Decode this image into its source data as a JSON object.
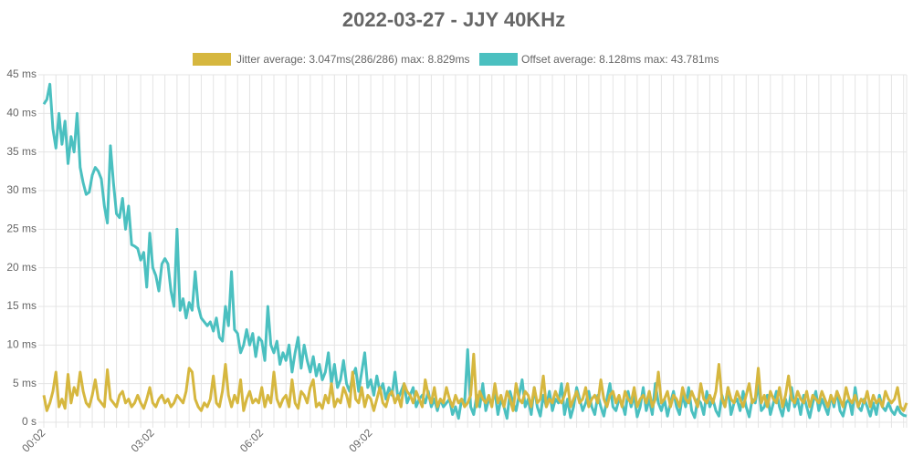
{
  "chart_data": {
    "type": "line",
    "title": "2022-03-27 - JJY 40KHz",
    "categories": [
      "00:02",
      null,
      null,
      null,
      null,
      null,
      null,
      null,
      null,
      null,
      null,
      null,
      null,
      null,
      null,
      null,
      null,
      null,
      null,
      null,
      null,
      null,
      null,
      null,
      null,
      null,
      null,
      null,
      null,
      null,
      null,
      null,
      null,
      null,
      null,
      null,
      "03:02",
      null,
      null,
      null,
      null,
      null,
      null,
      null,
      null,
      null,
      null,
      null,
      null,
      null,
      null,
      null,
      null,
      null,
      null,
      null,
      null,
      null,
      null,
      null,
      null,
      null,
      null,
      null,
      null,
      null,
      null,
      null,
      null,
      null,
      null,
      null,
      "06:02",
      null,
      null,
      null,
      null,
      null,
      null,
      null,
      null,
      null,
      null,
      null,
      null,
      null,
      null,
      null,
      null,
      null,
      null,
      null,
      null,
      null,
      null,
      null,
      null,
      null,
      null,
      null,
      null,
      null,
      null,
      null,
      null,
      null,
      null,
      null,
      "09:02",
      null,
      null,
      null,
      null,
      null,
      null,
      null,
      null,
      null,
      null,
      null,
      null,
      null,
      null,
      null,
      null,
      null,
      null,
      null,
      null,
      null,
      null,
      null,
      null,
      null,
      null,
      null,
      null,
      null,
      null,
      null,
      null,
      null,
      null,
      null,
      null,
      null,
      null,
      null,
      null,
      null,
      null,
      null,
      null,
      null,
      null,
      null,
      null,
      null,
      null,
      null,
      null,
      null,
      null,
      null,
      null,
      null,
      null,
      null,
      null,
      null,
      null,
      null,
      null,
      null,
      null,
      null,
      null,
      null,
      null,
      null,
      null,
      null,
      null,
      null,
      null,
      null,
      null,
      null,
      null,
      null,
      null,
      null,
      null,
      null,
      null,
      null,
      null,
      null,
      null,
      null,
      null,
      null,
      null,
      null,
      null,
      null,
      null,
      null,
      null,
      null,
      null,
      null,
      null,
      null,
      null,
      null,
      null,
      null,
      null,
      null,
      null,
      null,
      null,
      null,
      null,
      null,
      null,
      null,
      null,
      null,
      null,
      null,
      null,
      null,
      null,
      null,
      null,
      null,
      null,
      null,
      null,
      null,
      null,
      null,
      null,
      null,
      null,
      null,
      null,
      null,
      null,
      null,
      null,
      null,
      null,
      null,
      null,
      null,
      null,
      null,
      null,
      null,
      null,
      null,
      null,
      null,
      null,
      null,
      null,
      null,
      null,
      null,
      null,
      null,
      null,
      null,
      null,
      null,
      null,
      null,
      null,
      null,
      null,
      null,
      null,
      null
    ],
    "series": [
      {
        "name": "Jitter average: 3.047ms(286/286) max: 8.829ms",
        "color": "#d6b73f",
        "values": [
          3.5,
          1.5,
          2.5,
          4,
          6.5,
          2,
          3,
          1.8,
          6.2,
          2.5,
          4.5,
          3.5,
          6.5,
          4,
          2.5,
          2,
          3.5,
          5.5,
          3,
          2.5,
          2,
          6.8,
          3,
          2.5,
          2,
          3.5,
          4,
          2.5,
          3,
          2,
          2.5,
          3.5,
          2.5,
          1.8,
          3,
          4.5,
          2.5,
          2,
          3,
          3.5,
          2.5,
          3,
          2,
          2.5,
          3.5,
          3,
          2.5,
          4,
          7,
          6.5,
          3,
          2,
          1.5,
          2.5,
          2,
          3,
          6,
          2.5,
          2,
          4,
          7.5,
          3.5,
          2,
          3.5,
          2.5,
          5.5,
          1.5,
          3,
          4,
          2.5,
          3,
          2.5,
          4.5,
          2,
          3.5,
          2.5,
          6.5,
          3,
          2,
          3,
          3.5,
          2,
          5.5,
          2.5,
          1.8,
          4,
          3.5,
          2.5,
          4.5,
          5.5,
          2,
          2.5,
          1.8,
          3.5,
          2.5,
          5,
          2,
          3,
          2.5,
          4.5,
          3.5,
          2,
          6.5,
          3,
          2.5,
          4.5,
          2,
          3.5,
          3,
          1.5,
          3,
          4.5,
          2.5,
          2,
          3.5,
          4,
          2.5,
          3.5,
          2,
          5,
          4,
          3.5,
          2.5,
          4,
          3,
          2,
          5.5,
          3.5,
          2.5,
          4.5,
          2,
          3,
          2.5,
          4.5,
          3,
          2,
          3.5,
          2.5,
          3,
          2,
          2.5,
          3.5,
          8.829,
          2,
          4,
          3,
          2.5,
          3.5,
          2,
          5,
          2.5,
          3.5,
          2,
          4,
          3,
          1.5,
          5,
          3,
          2.5,
          4,
          3.5,
          2,
          4.5,
          2.5,
          3,
          6,
          2,
          3,
          2.5,
          4,
          3,
          2.5,
          3.5,
          5,
          2,
          3,
          4,
          2.5,
          3,
          4.5,
          2,
          3,
          3.5,
          2.5,
          5.5,
          3,
          2,
          3.5,
          4,
          2.5,
          3.5,
          2,
          4,
          3,
          2.5,
          4.5,
          2,
          3,
          3.5,
          2.5,
          4,
          2,
          3,
          6.5,
          2.5,
          3,
          4,
          2,
          3.5,
          3,
          2,
          4.5,
          3,
          2.5,
          4,
          3,
          2,
          5,
          3,
          2.5,
          3.5,
          2.5,
          4,
          7.5,
          3,
          2,
          4.5,
          3,
          2.5,
          4,
          3,
          2,
          3.5,
          5,
          2.5,
          3,
          7,
          2.5,
          3.5,
          2,
          4,
          3,
          2.5,
          4.5,
          2,
          3.5,
          6,
          3,
          2.5,
          4,
          3,
          2.5,
          4,
          2,
          3.5,
          3,
          2.5,
          4,
          3,
          2,
          3.5,
          2.5,
          4,
          3,
          2,
          4.5,
          3,
          2.5,
          3.5,
          2,
          3,
          2.5,
          4,
          2,
          3.5,
          2.5,
          3,
          2,
          4,
          3,
          2.5,
          3,
          4.5,
          2,
          1.5,
          2.5
        ]
      },
      {
        "name": "Offset average: 8.128ms max: 43.781ms",
        "color": "#4bc0c0",
        "values": [
          41.2,
          41.8,
          43.781,
          38,
          35.5,
          40,
          36,
          39,
          33.5,
          37,
          35,
          40,
          33,
          31,
          29.5,
          29.8,
          32,
          33,
          32.5,
          31.5,
          28,
          25.8,
          35.8,
          31,
          27,
          26.5,
          29,
          25,
          28,
          23,
          22.8,
          22.5,
          21,
          22,
          17.5,
          24.5,
          20,
          19,
          17,
          20.5,
          21.2,
          20.5,
          17,
          15,
          25,
          14.5,
          16,
          13.5,
          15.5,
          14.5,
          19.5,
          15,
          13.5,
          13,
          12.5,
          13,
          11.8,
          13.5,
          11,
          10.5,
          15,
          12.5,
          19.5,
          12,
          11.5,
          9,
          10,
          12,
          10,
          11.5,
          8.5,
          11,
          10.5,
          8,
          15,
          10,
          9,
          10.5,
          7.5,
          9,
          8,
          10,
          6.5,
          9,
          11,
          7,
          10,
          8,
          6.5,
          8.5,
          6,
          7.5,
          5.5,
          6.5,
          9,
          5,
          7.5,
          4.5,
          5.5,
          8,
          5,
          4,
          6,
          7,
          4,
          6.5,
          9,
          4.5,
          5.5,
          3.5,
          6,
          4,
          5,
          3,
          4.5,
          3.5,
          6.5,
          3,
          4,
          5,
          2.5,
          3.5,
          4.5,
          2,
          3,
          3.5,
          2.5,
          4,
          2,
          3,
          1.5,
          3,
          2,
          2.5,
          3,
          1,
          2,
          0.5,
          3,
          2.5,
          9.4,
          2,
          1,
          3.5,
          2,
          5,
          1.5,
          3,
          2.5,
          4,
          1,
          3,
          2,
          0.5,
          4,
          2.5,
          1.5,
          3.5,
          5.5,
          2,
          3,
          1,
          4.5,
          2,
          0.8,
          3.5,
          2,
          4,
          1.5,
          3,
          2.5,
          5,
          1,
          3,
          0.6,
          2,
          4.5,
          3,
          1.5,
          2.5,
          4,
          2,
          1,
          3.5,
          2,
          0.8,
          3,
          5,
          2,
          1.5,
          3,
          2.5,
          1,
          4,
          2,
          3.5,
          0.7,
          2,
          4.5,
          1.5,
          3,
          1,
          5,
          2.5,
          1.5,
          3,
          0.8,
          2.5,
          4,
          2,
          1,
          3.5,
          2,
          4.5,
          1.5,
          0.6,
          3,
          2.5,
          1,
          4,
          2,
          3,
          1.5,
          0.8,
          3.5,
          2,
          4.5,
          1,
          2.5,
          3,
          1.5,
          4,
          2,
          0.7,
          3,
          2.5,
          5,
          1.5,
          2,
          3.5,
          1,
          2.5,
          4,
          2,
          0.8,
          3,
          1.5,
          4.5,
          2,
          3,
          1,
          3.5,
          2,
          0.6,
          2.5,
          4,
          1.5,
          3,
          2,
          1,
          3.5,
          2,
          4,
          1.5,
          0.8,
          2.5,
          3,
          1,
          4.5,
          2,
          1.5,
          3,
          2,
          0.8,
          2.5,
          1,
          3.5,
          2,
          1.5,
          2.5,
          1.5,
          1,
          2,
          1.2,
          0.9,
          0.8
        ]
      }
    ],
    "ylim": [
      0,
      45
    ],
    "yticks": [
      {
        "value": 0,
        "label": "0 s"
      },
      {
        "value": 5,
        "label": "5 ms"
      },
      {
        "value": 10,
        "label": "10 ms"
      },
      {
        "value": 15,
        "label": "15 ms"
      },
      {
        "value": 20,
        "label": "20 ms"
      },
      {
        "value": 25,
        "label": "25 ms"
      },
      {
        "value": 30,
        "label": "30 ms"
      },
      {
        "value": 35,
        "label": "35 ms"
      },
      {
        "value": 40,
        "label": "40 ms"
      },
      {
        "value": 45,
        "label": "45 ms"
      }
    ],
    "grid": true
  }
}
